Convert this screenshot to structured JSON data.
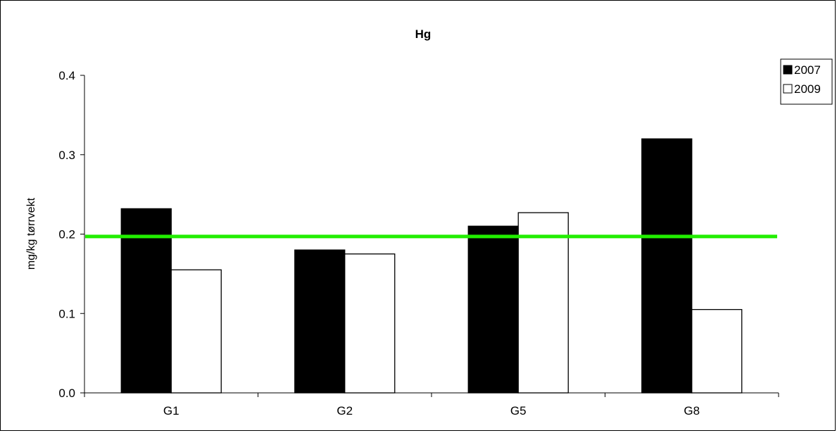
{
  "chart_data": {
    "type": "bar",
    "title": "Hg",
    "xlabel": "",
    "ylabel": "mg/kg tørrvekt",
    "categories": [
      "G1",
      "G2",
      "G5",
      "G8"
    ],
    "series": [
      {
        "name": "2007",
        "values": [
          0.232,
          0.18,
          0.21,
          0.32
        ],
        "color": "#000000"
      },
      {
        "name": "2009",
        "values": [
          0.155,
          0.175,
          0.227,
          0.105
        ],
        "color": "#ffffff"
      }
    ],
    "ylim": [
      0,
      0.4
    ],
    "yticks": [
      "0.0",
      "0.1",
      "0.2",
      "0.3",
      "0.4"
    ],
    "reference_line": {
      "value": 0.197,
      "color": "#22ee00"
    },
    "grid": false,
    "legend_position": "top-right"
  }
}
